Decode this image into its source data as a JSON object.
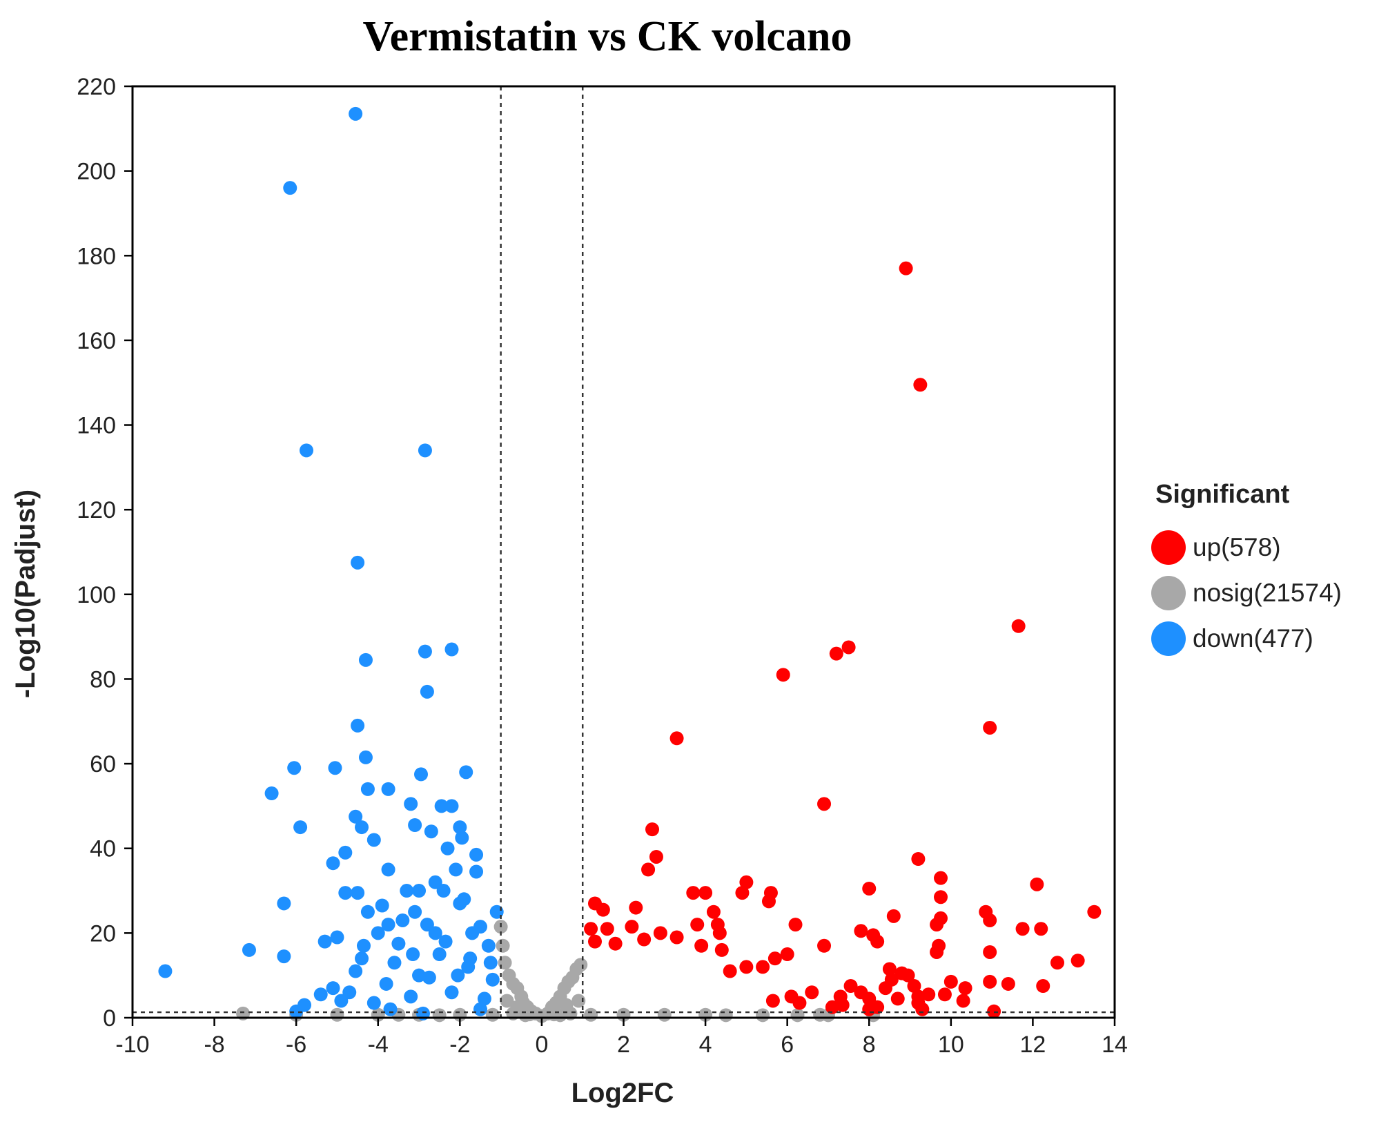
{
  "chart_data": {
    "type": "scatter",
    "title": "Vermistatin vs CK volcano",
    "xlabel": "Log2FC",
    "ylabel": "-Log10(Padjust)",
    "xlim": [
      -10,
      14
    ],
    "ylim": [
      0,
      220
    ],
    "xticks": [
      -10,
      -8,
      -6,
      -4,
      -2,
      0,
      2,
      4,
      6,
      8,
      10,
      12,
      14
    ],
    "yticks": [
      0,
      20,
      40,
      60,
      80,
      100,
      120,
      140,
      160,
      180,
      200,
      220
    ],
    "thresholds": {
      "log2fc": [
        -1,
        1
      ],
      "neg_log10_padjust": 1.3
    },
    "legend": {
      "title": "Significant",
      "position": "right",
      "entries": [
        {
          "key": "up",
          "label": "up(578)",
          "color": "#ff0000"
        },
        {
          "key": "nosig",
          "label": "nosig(21574)",
          "color": "#a8a8a8"
        },
        {
          "key": "down",
          "label": "down(477)",
          "color": "#1e90ff"
        }
      ]
    },
    "series": [
      {
        "name": "up",
        "color": "#ff0000",
        "points": [
          [
            8.9,
            177
          ],
          [
            9.25,
            149.5
          ],
          [
            11.65,
            92.5
          ],
          [
            7.5,
            87.5
          ],
          [
            7.2,
            86
          ],
          [
            5.9,
            81
          ],
          [
            10.95,
            68.5
          ],
          [
            3.3,
            66
          ],
          [
            6.9,
            50.5
          ],
          [
            2.7,
            44.5
          ],
          [
            9.2,
            37.5
          ],
          [
            2.8,
            38
          ],
          [
            2.6,
            35
          ],
          [
            9.75,
            33
          ],
          [
            5.0,
            32
          ],
          [
            12.1,
            31.5
          ],
          [
            8.0,
            30.5
          ],
          [
            4.9,
            29.5
          ],
          [
            3.7,
            29.5
          ],
          [
            4.0,
            29.5
          ],
          [
            5.6,
            29.5
          ],
          [
            5.55,
            27.5
          ],
          [
            9.75,
            28.5
          ],
          [
            2.3,
            26
          ],
          [
            1.3,
            27
          ],
          [
            1.5,
            25.5
          ],
          [
            4.2,
            25
          ],
          [
            4.3,
            22
          ],
          [
            8.6,
            24
          ],
          [
            13.5,
            25
          ],
          [
            10.85,
            25
          ],
          [
            10.95,
            23
          ],
          [
            9.75,
            23.5
          ],
          [
            9.65,
            22
          ],
          [
            6.2,
            22
          ],
          [
            3.8,
            22
          ],
          [
            1.2,
            21
          ],
          [
            1.6,
            21
          ],
          [
            2.2,
            21.5
          ],
          [
            2.9,
            20
          ],
          [
            3.3,
            19
          ],
          [
            4.35,
            20
          ],
          [
            7.8,
            20.5
          ],
          [
            8.1,
            19.5
          ],
          [
            8.2,
            18
          ],
          [
            9.7,
            17
          ],
          [
            9.65,
            15.5
          ],
          [
            11.75,
            21
          ],
          [
            12.2,
            21
          ],
          [
            10.95,
            15.5
          ],
          [
            1.3,
            18
          ],
          [
            1.8,
            17.5
          ],
          [
            2.5,
            18.5
          ],
          [
            3.9,
            17
          ],
          [
            4.4,
            16
          ],
          [
            6.0,
            15
          ],
          [
            6.9,
            17
          ],
          [
            5.7,
            14
          ],
          [
            5.4,
            12
          ],
          [
            5.0,
            12
          ],
          [
            4.6,
            11
          ],
          [
            8.5,
            11.5
          ],
          [
            8.8,
            10.5
          ],
          [
            8.95,
            10
          ],
          [
            9.1,
            7.5
          ],
          [
            10.0,
            8.5
          ],
          [
            10.95,
            8.5
          ],
          [
            11.4,
            8
          ],
          [
            12.25,
            7.5
          ],
          [
            12.6,
            13
          ],
          [
            13.1,
            13.5
          ],
          [
            7.55,
            7.5
          ],
          [
            7.8,
            6
          ],
          [
            8.0,
            4.5
          ],
          [
            8.4,
            7
          ],
          [
            8.55,
            9
          ],
          [
            8.7,
            4.5
          ],
          [
            9.2,
            5
          ],
          [
            9.45,
            5.5
          ],
          [
            9.85,
            5.5
          ],
          [
            10.3,
            4
          ],
          [
            10.35,
            7
          ],
          [
            11.05,
            1.5
          ],
          [
            9.2,
            3.5
          ],
          [
            6.6,
            6
          ],
          [
            6.3,
            3.5
          ],
          [
            6.1,
            5
          ],
          [
            5.65,
            4
          ],
          [
            7.3,
            5
          ],
          [
            7.35,
            3
          ],
          [
            7.1,
            2.5
          ],
          [
            8.2,
            2.5
          ],
          [
            9.3,
            2
          ],
          [
            8.0,
            2
          ]
        ]
      },
      {
        "name": "down",
        "color": "#1e90ff",
        "points": [
          [
            -4.55,
            213.5
          ],
          [
            -6.15,
            196
          ],
          [
            -5.75,
            134
          ],
          [
            -2.85,
            134
          ],
          [
            -4.5,
            107.5
          ],
          [
            -4.3,
            84.5
          ],
          [
            -2.85,
            86.5
          ],
          [
            -2.2,
            87
          ],
          [
            -2.8,
            77
          ],
          [
            -4.5,
            69
          ],
          [
            -4.3,
            61.5
          ],
          [
            -6.05,
            59
          ],
          [
            -5.05,
            59
          ],
          [
            -1.85,
            58
          ],
          [
            -2.95,
            57.5
          ],
          [
            -6.6,
            53
          ],
          [
            -4.25,
            54
          ],
          [
            -3.75,
            54
          ],
          [
            -5.9,
            45
          ],
          [
            -3.2,
            50.5
          ],
          [
            -2.45,
            50
          ],
          [
            -2.2,
            50
          ],
          [
            -1.6,
            38.5
          ],
          [
            -4.55,
            47.5
          ],
          [
            -4.4,
            45
          ],
          [
            -4.1,
            42
          ],
          [
            -4.8,
            39
          ],
          [
            -5.1,
            36.5
          ],
          [
            -3.75,
            35
          ],
          [
            -2.3,
            40
          ],
          [
            -1.6,
            34.5
          ],
          [
            -4.5,
            29.5
          ],
          [
            -4.8,
            29.5
          ],
          [
            -6.3,
            27
          ],
          [
            -1.1,
            25
          ],
          [
            -7.15,
            16
          ],
          [
            -6.3,
            14.5
          ],
          [
            -9.2,
            11
          ],
          [
            -5.3,
            18
          ],
          [
            -3.1,
            25
          ],
          [
            -2.8,
            22
          ],
          [
            -2.0,
            27
          ],
          [
            -1.5,
            21.5
          ],
          [
            -1.3,
            17
          ],
          [
            -1.8,
            12
          ],
          [
            -2.5,
            15
          ],
          [
            -3.0,
            10
          ],
          [
            -3.5,
            17.5
          ],
          [
            -4.0,
            20
          ],
          [
            -4.25,
            25
          ],
          [
            -3.8,
            8
          ],
          [
            -3.2,
            5
          ],
          [
            -2.2,
            6
          ],
          [
            -1.4,
            4.5
          ],
          [
            -2.75,
            9.5
          ],
          [
            -5.0,
            19
          ],
          [
            -5.1,
            7
          ],
          [
            -4.9,
            4
          ],
          [
            -5.4,
            5.5
          ],
          [
            -6.0,
            1.5
          ],
          [
            -5.8,
            3
          ],
          [
            -4.7,
            6
          ],
          [
            -4.1,
            3.5
          ],
          [
            -4.4,
            14
          ],
          [
            -3.6,
            13
          ],
          [
            -3.0,
            30
          ],
          [
            -2.6,
            32
          ],
          [
            -2.1,
            35
          ],
          [
            -1.9,
            28
          ],
          [
            -1.7,
            20
          ],
          [
            -2.35,
            18
          ],
          [
            -3.4,
            23
          ],
          [
            -3.9,
            26.5
          ],
          [
            -3.3,
            30
          ],
          [
            -2.7,
            44
          ],
          [
            -3.1,
            45.5
          ],
          [
            -2.4,
            30
          ],
          [
            -1.75,
            14
          ],
          [
            -1.2,
            9
          ],
          [
            -1.5,
            2
          ],
          [
            -2.9,
            1
          ],
          [
            -3.7,
            2
          ],
          [
            -1.25,
            13
          ],
          [
            -2.05,
            10
          ],
          [
            -3.15,
            15
          ],
          [
            -2.6,
            20
          ],
          [
            -4.55,
            11
          ],
          [
            -4.35,
            17
          ],
          [
            -3.75,
            22
          ],
          [
            -1.95,
            42.5
          ],
          [
            -2.0,
            45
          ]
        ]
      },
      {
        "name": "nosig",
        "color": "#a8a8a8",
        "points": [
          [
            -1.0,
            21.5
          ],
          [
            -0.95,
            17
          ],
          [
            -0.9,
            13
          ],
          [
            -0.8,
            10
          ],
          [
            -0.7,
            8
          ],
          [
            -0.6,
            7
          ],
          [
            -0.5,
            5
          ],
          [
            -0.45,
            3.5
          ],
          [
            -0.35,
            2.5
          ],
          [
            -0.25,
            1.5
          ],
          [
            -0.15,
            1
          ],
          [
            0,
            0.4
          ],
          [
            0.15,
            1
          ],
          [
            0.25,
            2.5
          ],
          [
            0.35,
            3.5
          ],
          [
            0.45,
            5
          ],
          [
            0.55,
            7
          ],
          [
            0.65,
            8.5
          ],
          [
            0.75,
            9.5
          ],
          [
            0.85,
            11.5
          ],
          [
            0.95,
            12.5
          ],
          [
            -0.85,
            4
          ],
          [
            -0.6,
            2.5
          ],
          [
            -0.3,
            0.8
          ],
          [
            0.3,
            0.8
          ],
          [
            0.6,
            3
          ],
          [
            0.9,
            4
          ],
          [
            -1.2,
            0.7
          ],
          [
            -2,
            0.7
          ],
          [
            -3,
            0.7
          ],
          [
            -4,
            0.7
          ],
          [
            -5,
            0.7
          ],
          [
            -6,
            0.7
          ],
          [
            -7.3,
            1
          ],
          [
            -3.5,
            0.7
          ],
          [
            -2.5,
            0.6
          ],
          [
            1.2,
            0.7
          ],
          [
            2,
            0.7
          ],
          [
            3,
            0.7
          ],
          [
            4,
            0.7
          ],
          [
            4.5,
            0.6
          ],
          [
            5.4,
            0.6
          ],
          [
            6.25,
            0.6
          ],
          [
            7.0,
            0.6
          ],
          [
            8.1,
            0.6
          ],
          [
            6.8,
            0.7
          ],
          [
            -0.7,
            1
          ],
          [
            0.7,
            1
          ],
          [
            -0.4,
            0.6
          ],
          [
            0.45,
            0.6
          ]
        ]
      }
    ]
  }
}
